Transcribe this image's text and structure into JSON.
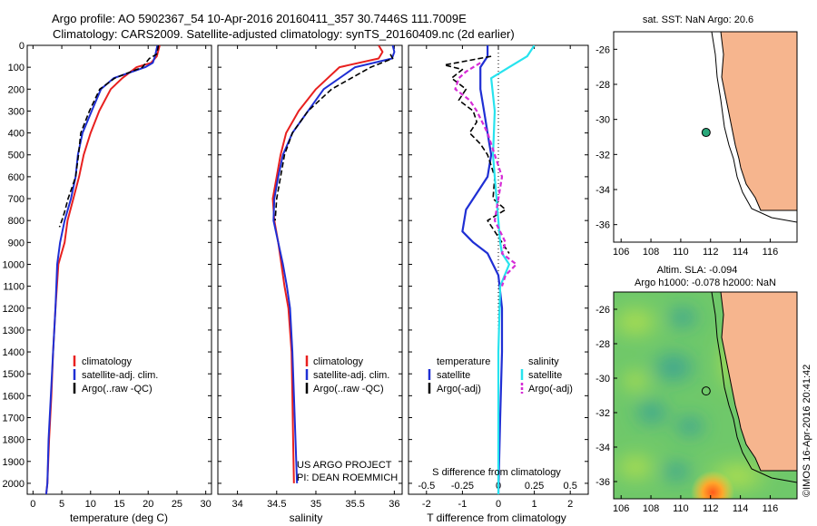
{
  "figure": {
    "title_line1": "Argo profile: AO 5902367_54 10-Apr-2016 20160411_357 30.7446S 111.7009E",
    "title_line2": "Climatology: CARS2009. Satellite-adjusted climatology: synTS_20160409.nc (2d earlier)",
    "watermark": "©IMOS 16-Apr-2016 20:41:42",
    "pi_line1": "US ARGO PROJECT",
    "pi_line2": "PI: DEAN ROEMMICH"
  },
  "colors": {
    "climatology": "#e8201f",
    "satellite": "#1f2fd4",
    "argo": "#000000",
    "sal_satellite": "#27e3ee",
    "sal_argo": "#d62bd6",
    "land": "#f6b58e",
    "float": "#2aa87a"
  },
  "chart_data": [
    {
      "id": "temperature",
      "type": "line",
      "xlabel": "temperature (deg C)",
      "xlim": [
        -1,
        31
      ],
      "xticks": [
        "0",
        "5",
        "10",
        "15",
        "20",
        "25",
        "30"
      ],
      "ylim": [
        0,
        2050
      ],
      "yticks": [
        "0",
        "100",
        "200",
        "300",
        "400",
        "500",
        "600",
        "700",
        "800",
        "900",
        "1000",
        "1100",
        "1200",
        "1300",
        "1400",
        "1500",
        "1600",
        "1700",
        "1800",
        "1900",
        "2000"
      ],
      "legend": [
        "climatology",
        "satellite-adj. clim.",
        "Argo(..raw -QC)"
      ],
      "series": [
        {
          "name": "climatology",
          "x": [
            22.0,
            21.5,
            20.5,
            18.0,
            15.5,
            13.5,
            11.5,
            10.0,
            8.8,
            8.0,
            7.0,
            6.0,
            5.5,
            4.4,
            3.9,
            3.5,
            3.2,
            2.8,
            2.5,
            2.3
          ],
          "y": [
            0,
            50,
            80,
            100,
            150,
            200,
            300,
            400,
            500,
            600,
            700,
            800,
            900,
            1000,
            1200,
            1400,
            1600,
            1800,
            2000,
            2050
          ]
        },
        {
          "name": "satellite-adj. clim.",
          "x": [
            21.6,
            21.2,
            20.8,
            19.5,
            14.0,
            11.8,
            10.2,
            8.6,
            7.8,
            7.4,
            6.6,
            5.5,
            4.7,
            4.2,
            3.9,
            3.5,
            3.1,
            2.7,
            2.5,
            2.3
          ],
          "y": [
            0,
            50,
            80,
            100,
            150,
            200,
            300,
            400,
            500,
            600,
            700,
            800,
            900,
            1000,
            1200,
            1400,
            1600,
            1800,
            2000,
            2050
          ]
        },
        {
          "name": "Argo(..raw -QC)",
          "x": [
            21.8,
            21.5,
            20.2,
            19.0,
            14.2,
            11.6,
            9.8,
            8.3,
            7.9,
            7.4,
            6.9,
            6.1,
            5.5,
            5.0,
            4.6
          ],
          "y": [
            0,
            40,
            60,
            100,
            150,
            200,
            300,
            400,
            500,
            600,
            640,
            700,
            760,
            800,
            830
          ]
        }
      ]
    },
    {
      "id": "salinity",
      "type": "line",
      "xlabel": "salinity",
      "xlim": [
        33.75,
        36.1
      ],
      "xticks": [
        "34",
        "34.5",
        "35",
        "35.5",
        "36"
      ],
      "ylim": [
        0,
        2050
      ],
      "legend": [
        "climatology",
        "satellite-adj. clim.",
        "Argo(..raw -QC)"
      ],
      "series": [
        {
          "name": "climatology",
          "x": [
            35.8,
            35.85,
            35.8,
            35.3,
            35.0,
            34.78,
            34.62,
            34.55,
            34.5,
            34.45,
            34.47,
            34.52,
            34.56,
            34.6,
            34.65,
            34.69,
            34.7,
            34.71,
            34.72
          ],
          "y": [
            0,
            30,
            60,
            100,
            200,
            300,
            400,
            500,
            600,
            700,
            800,
            900,
            1000,
            1100,
            1200,
            1400,
            1600,
            1800,
            2000
          ]
        },
        {
          "name": "satellite-adj. clim.",
          "x": [
            35.98,
            36.0,
            35.97,
            35.5,
            35.1,
            34.9,
            34.7,
            34.58,
            34.52,
            34.47,
            34.46,
            34.52,
            34.58,
            34.63,
            34.67,
            34.7,
            34.72,
            34.74,
            34.76
          ],
          "y": [
            0,
            30,
            60,
            100,
            200,
            300,
            400,
            500,
            600,
            700,
            800,
            900,
            1000,
            1100,
            1200,
            1400,
            1600,
            1800,
            2000
          ]
        },
        {
          "name": "Argo(..raw -QC)",
          "x": [
            35.95,
            35.98,
            35.7,
            35.2,
            34.9,
            34.7,
            34.6,
            34.55,
            34.5,
            34.48
          ],
          "y": [
            40,
            60,
            100,
            200,
            300,
            400,
            500,
            600,
            700,
            800
          ]
        }
      ]
    },
    {
      "id": "difference",
      "type": "line",
      "xlabel": "T difference from climatology",
      "x2label": "S difference from climatology",
      "xlim": [
        -2.5,
        2.5
      ],
      "xticks": [
        "-2",
        "-1",
        "0",
        "1",
        "2"
      ],
      "x2ticks": [
        "-0.5",
        "-0.25",
        "0",
        "0.25",
        "0.5"
      ],
      "ylim": [
        0,
        2050
      ],
      "legend_temperature_title": "temperature",
      "legend_salinity_title": "salinity",
      "legend_temperature": [
        "satellite",
        "Argo(-adj)"
      ],
      "legend_salinity": [
        "satellite",
        "Argo(-adj)"
      ],
      "series": [
        {
          "name": "temperature satellite",
          "x": [
            -0.3,
            -0.3,
            -0.5,
            -0.5,
            -0.4,
            -0.3,
            -0.2,
            -0.3,
            -0.5,
            -0.9,
            -1.0,
            -0.7,
            -0.3,
            0.0,
            0.1,
            0.1,
            0.05,
            0.0
          ],
          "y": [
            0,
            50,
            100,
            200,
            300,
            400,
            500,
            600,
            650,
            750,
            850,
            900,
            950,
            1050,
            1200,
            1400,
            1700,
            2050
          ]
        },
        {
          "name": "temperature Argo(-adj)",
          "x": [
            -0.2,
            -1.5,
            -1.0,
            -1.3,
            -0.9,
            -1.1,
            -0.7,
            -0.6,
            -0.8,
            -0.5,
            -0.3,
            -0.2,
            -0.1,
            -0.15,
            0.2,
            -0.3,
            -0.1,
            0.3
          ],
          "y": [
            50,
            90,
            110,
            150,
            200,
            250,
            300,
            350,
            400,
            450,
            500,
            550,
            600,
            700,
            750,
            800,
            850,
            950
          ]
        },
        {
          "name": "salinity satellite",
          "x": [
            1.0,
            0.8,
            0.3,
            -0.2,
            -0.1,
            -0.15,
            -0.1,
            -0.05,
            0.0,
            0.05,
            0.1,
            0.3,
            0.05,
            0.0,
            0.0,
            0.0
          ],
          "y": [
            0,
            50,
            100,
            150,
            300,
            500,
            600,
            700,
            800,
            900,
            950,
            1000,
            1100,
            1400,
            1700,
            2050
          ]
        },
        {
          "name": "salinity Argo(-adj)",
          "x": [
            -0.5,
            -0.9,
            -1.1,
            -1.2,
            -0.8,
            -0.6,
            -0.3,
            -0.1,
            0.1,
            0.0,
            -0.1,
            0.2,
            0.1,
            0.5,
            0.2,
            0.1
          ],
          "y": [
            80,
            120,
            150,
            200,
            250,
            300,
            400,
            500,
            600,
            700,
            800,
            900,
            950,
            1000,
            1050,
            1100
          ]
        }
      ]
    },
    {
      "id": "sst_map",
      "type": "scatter",
      "title": "sat. SST: NaN Argo: 20.6",
      "xlim": [
        105.5,
        117.8
      ],
      "ylim": [
        -37,
        -25
      ],
      "xticks": [
        "106",
        "108",
        "110",
        "112",
        "114",
        "116"
      ],
      "yticks": [
        "-26",
        "-28",
        "-30",
        "-32",
        "-34",
        "-36"
      ],
      "float_position": {
        "lon": 111.7009,
        "lat": -30.7446
      }
    },
    {
      "id": "sla_map",
      "type": "heatmap",
      "title_line1": "Altim. SLA: -0.094",
      "title_line2": "Argo h1000: -0.078 h2000: NaN",
      "xlim": [
        105.5,
        117.8
      ],
      "ylim": [
        -37,
        -25
      ],
      "xticks": [
        "106",
        "108",
        "110",
        "112",
        "114",
        "116"
      ],
      "yticks": [
        "-26",
        "-28",
        "-30",
        "-32",
        "-34",
        "-36"
      ],
      "float_position": {
        "lon": 111.7009,
        "lat": -30.7446
      }
    }
  ]
}
